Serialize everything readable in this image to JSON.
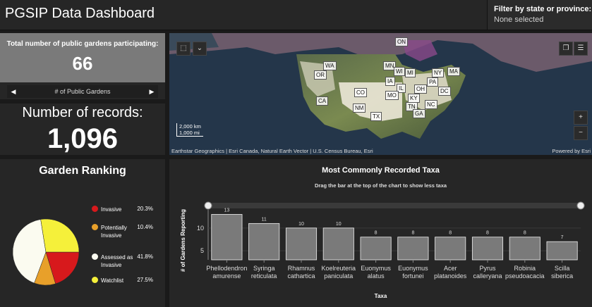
{
  "header": {
    "title": "PGSIP Data Dashboard",
    "filter_label": "Filter by state or province:",
    "filter_value": "None selected"
  },
  "kpi_gardens": {
    "label": "Total number of public gardens participating:",
    "value": "66",
    "nav_label": "# of Public Gardens",
    "prev_glyph": "◀",
    "next_glyph": "▶"
  },
  "kpi_records": {
    "label": "Number of records:",
    "value": "1,096"
  },
  "map": {
    "select_glyph": "⬚",
    "chevron_glyph": "⌄",
    "bookmark_glyph": "❐",
    "list_glyph": "☰",
    "zoom_in": "+",
    "zoom_out": "−",
    "scale_km": "2,000 km",
    "scale_mi": "1,000 mi",
    "attribution": "Earthstar Geographics | Esri Canada, Natural Earth Vector | U.S. Census Bureau, Esri",
    "powered": "Powered by Esri",
    "states": [
      "ON",
      "WA",
      "OR",
      "CA",
      "CO",
      "NM",
      "TX",
      "MN",
      "IA",
      "WI",
      "MI",
      "IL",
      "OH",
      "PA",
      "NY",
      "MA",
      "KY",
      "TN",
      "NC",
      "GA",
      "MO",
      "DC"
    ]
  },
  "ranking": {
    "title": "Garden Ranking",
    "legend": [
      {
        "label": "Invasive",
        "pct": "20.3%",
        "color": "#d7191c"
      },
      {
        "label": "Potentially Invasive",
        "pct": "10.4%",
        "color": "#e8a02a"
      },
      {
        "label": "Assessed as Invasive",
        "pct": "41.8%",
        "color": "#fbfbf0"
      },
      {
        "label": "Watchlist",
        "pct": "27.5%",
        "color": "#f5f03a"
      }
    ]
  },
  "chart_data": {
    "type": "bar",
    "title": "Most Commonly Recorded Taxa",
    "subtitle": "Drag the bar at the top of the chart to show less taxa",
    "xlabel": "Taxa",
    "ylabel": "# of Gardens Reporting",
    "ylim": [
      3,
      14
    ],
    "yticks": [
      5,
      10
    ],
    "categories": [
      "Phellodendron amurense",
      "Syringa reticulata",
      "Rhamnus cathartica",
      "Koelreuteria paniculata",
      "Euonymus alatus",
      "Euonymus fortunei",
      "Acer platanoides",
      "Pyrus calleryana",
      "Robinia pseudoacacia",
      "Scilla siberica"
    ],
    "values": [
      13,
      11,
      10,
      10,
      8,
      8,
      8,
      8,
      8,
      7
    ],
    "bar_color": "#7a7a7a"
  }
}
